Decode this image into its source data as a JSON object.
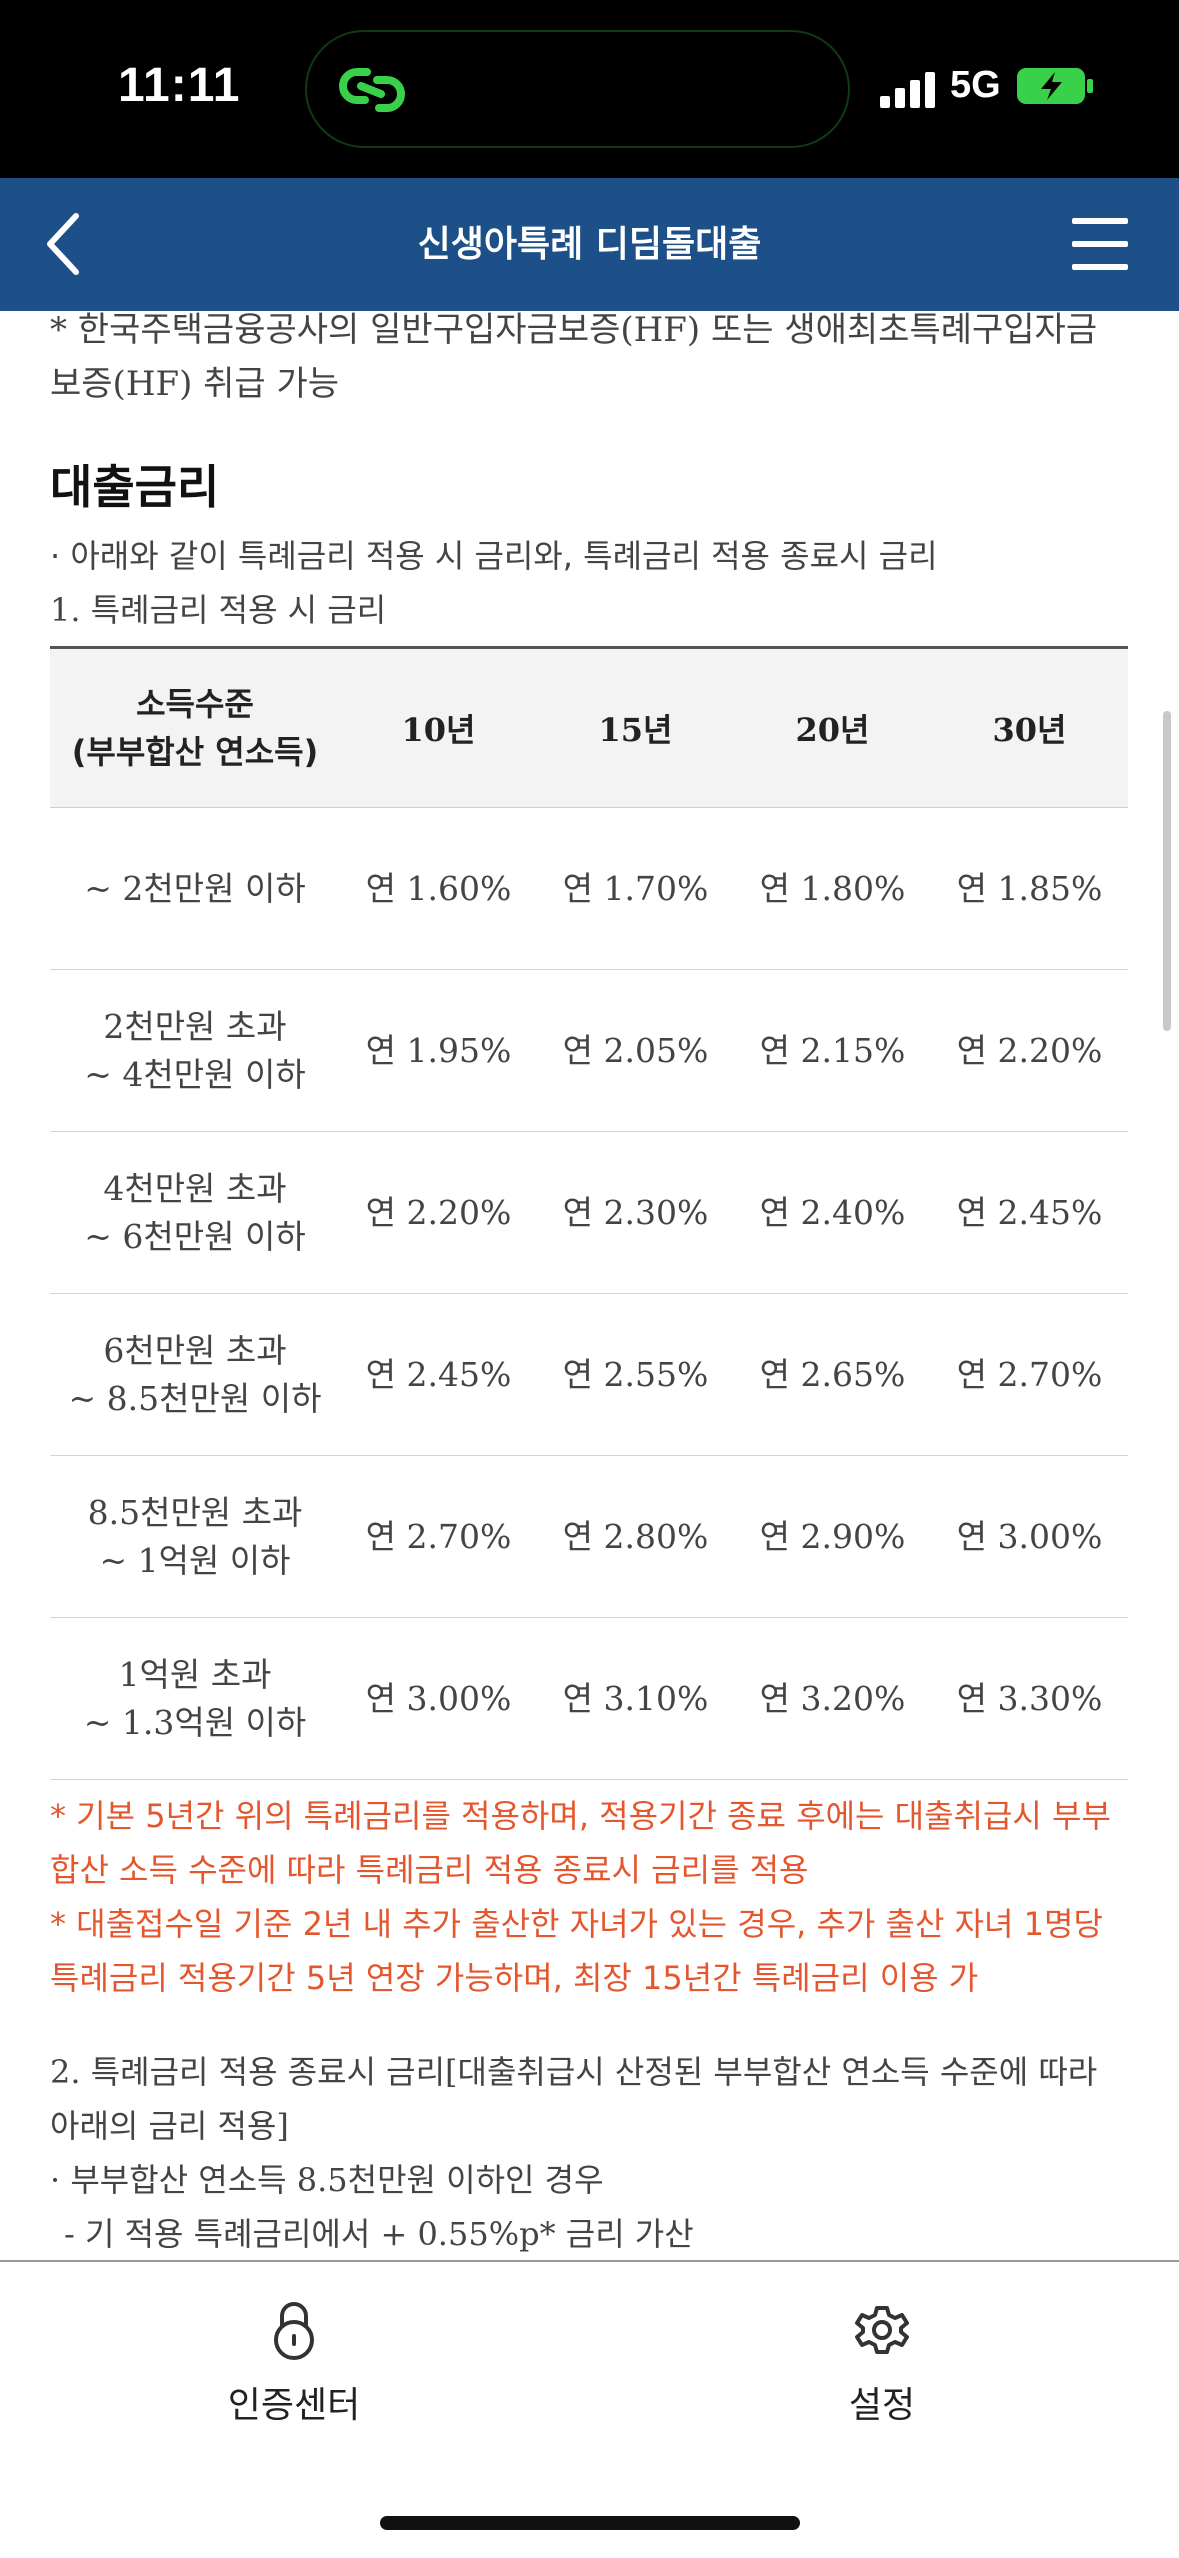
{
  "status_bar": {
    "time": "11:11",
    "network": "5G"
  },
  "header": {
    "title": "신생아특례 디딤돌대출"
  },
  "intro_note": "* 한국주택금융공사의 일반구입자금보증(HF) 또는 생애최초특례구입자금 보증(HF) 취급 가능",
  "section_title": "대출금리",
  "bullet_1": "· 아래와 같이 특례금리 적용 시 금리와, 특례금리 적용 종료시 금리",
  "sub_1": "1. 특례금리 적용 시 금리",
  "table": {
    "headers": [
      "소득수준\n(부부합산 연소득)",
      "10년",
      "15년",
      "20년",
      "30년"
    ],
    "rows": [
      {
        "income": "~ 2천만원 이하",
        "rates": [
          "연 1.60%",
          "연 1.70%",
          "연 1.80%",
          "연 1.85%"
        ]
      },
      {
        "income": "2천만원 초과\n~ 4천만원 이하",
        "rates": [
          "연 1.95%",
          "연 2.05%",
          "연 2.15%",
          "연 2.20%"
        ]
      },
      {
        "income": "4천만원 초과\n~ 6천만원 이하",
        "rates": [
          "연 2.20%",
          "연 2.30%",
          "연 2.40%",
          "연 2.45%"
        ]
      },
      {
        "income": "6천만원 초과\n~ 8.5천만원 이하",
        "rates": [
          "연 2.45%",
          "연 2.55%",
          "연 2.65%",
          "연 2.70%"
        ]
      },
      {
        "income": "8.5천만원 초과\n~ 1억원 이하",
        "rates": [
          "연 2.70%",
          "연 2.80%",
          "연 2.90%",
          "연 3.00%"
        ]
      },
      {
        "income": "1억원 초과\n~ 1.3억원 이하",
        "rates": [
          "연 3.00%",
          "연 3.10%",
          "연 3.20%",
          "연 3.30%"
        ]
      }
    ]
  },
  "notes_red": [
    "* 기본 5년간 위의 특례금리를 적용하며, 적용기간 종료 후에는 대출취급시 부부합산 소득 수준에 따라 특례금리 적용 종료시 금리를 적용",
    "* 대출접수일 기준 2년 내 추가 출산한 자녀가 있는 경우, 추가 출산 자녀 1명당 특례금리 적용기간 5년 연장 가능하며, 최장 15년간 특례금리 이용 가"
  ],
  "sub_2": "2. 특례금리 적용 종료시 금리[대출취급시 산정된 부부합산 연소득 수준에 따라 아래의 금리 적용]",
  "bullet_2": "· 부부합산 연소득 8.5천만원 이하인 경우",
  "dash_2": "- 기 적용 특례금리에서 + 0.55%p* 금리 가산",
  "bottom_nav": [
    {
      "label": "인증센터",
      "icon": "lock-icon"
    },
    {
      "label": "설정",
      "icon": "gear-icon"
    }
  ]
}
